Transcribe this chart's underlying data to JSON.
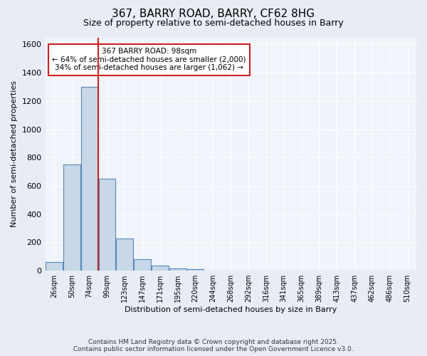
{
  "title": "367, BARRY ROAD, BARRY, CF62 8HG",
  "subtitle": "Size of property relative to semi-detached houses in Barry",
  "xlabel": "Distribution of semi-detached houses by size in Barry",
  "ylabel": "Number of semi-detached properties",
  "categories": [
    "26sqm",
    "50sqm",
    "74sqm",
    "99sqm",
    "123sqm",
    "147sqm",
    "171sqm",
    "195sqm",
    "220sqm",
    "244sqm",
    "268sqm",
    "292sqm",
    "316sqm",
    "341sqm",
    "365sqm",
    "389sqm",
    "413sqm",
    "437sqm",
    "462sqm",
    "486sqm",
    "510sqm"
  ],
  "values": [
    60,
    750,
    1300,
    650,
    230,
    80,
    35,
    18,
    10,
    0,
    0,
    0,
    0,
    0,
    0,
    0,
    0,
    0,
    0,
    0,
    0
  ],
  "bar_color": "#c8d8e8",
  "bar_edge_color": "#5588bb",
  "vline_x_index": 3,
  "vline_color": "#cc2222",
  "annotation_title": "367 BARRY ROAD: 98sqm",
  "annotation_line1": "← 64% of semi-detached houses are smaller (2,000)",
  "annotation_line2": "34% of semi-detached houses are larger (1,062) →",
  "annotation_box_color": "#ffffff",
  "annotation_edge_color": "#cc2222",
  "ylim": [
    0,
    1650
  ],
  "yticks": [
    0,
    200,
    400,
    600,
    800,
    1000,
    1200,
    1400,
    1600
  ],
  "bg_color": "#e8edf5",
  "plot_bg_color": "#f0f4fb",
  "footer1": "Contains HM Land Registry data © Crown copyright and database right 2025.",
  "footer2": "Contains public sector information licensed under the Open Government Licence v3.0.",
  "title_fontsize": 11,
  "subtitle_fontsize": 9,
  "axis_label_fontsize": 8,
  "tick_fontsize": 8,
  "xtick_fontsize": 7,
  "footer_fontsize": 6.5
}
